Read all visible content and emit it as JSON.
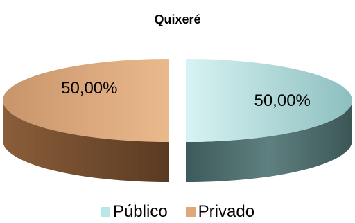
{
  "chart_data": {
    "type": "pie",
    "title": "Quixeré",
    "categories": [
      "Público",
      "Privado"
    ],
    "values": [
      50.0,
      50.0
    ],
    "data_labels": [
      "50,00%",
      "50,00%"
    ],
    "colors": {
      "Público": {
        "top": "#b9e6e6",
        "side": "#4f6f6f"
      },
      "Privado": {
        "top": "#dfa878",
        "side": "#6e4a2d"
      }
    },
    "exploded": true,
    "style": "3d",
    "legend_position": "bottom"
  }
}
